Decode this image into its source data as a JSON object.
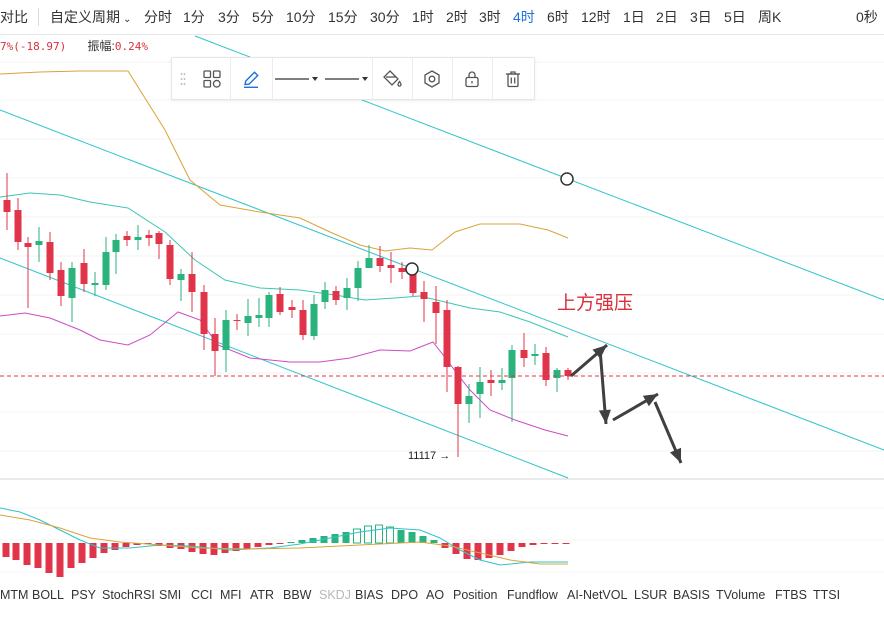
{
  "topbar": {
    "compare": "对比",
    "custom_period": "自定义周期",
    "periods": [
      "分时",
      "1分",
      "3分",
      "5分",
      "10分",
      "15分",
      "30分",
      "1时",
      "2时",
      "3时",
      "4时",
      "6时",
      "12时",
      "1日",
      "2日",
      "3日",
      "5日",
      "周K"
    ],
    "active_period": "4时",
    "timer": "0秒"
  },
  "info": {
    "change": "7%(-18.97)",
    "amplitude_label": "振幅:",
    "amplitude_value": "0.24%"
  },
  "drawing_toolbar": {
    "tools": [
      "layout-icon",
      "pencil-icon",
      "line-style-dropdown",
      "line-width-dropdown",
      "fill-color-icon",
      "settings-hexagon-icon",
      "lock-icon",
      "trash-icon"
    ]
  },
  "colors": {
    "up": "#2ab37d",
    "down": "#e0344a",
    "ma_upper": "#d9a43a",
    "ma_middle": "#3cc7b2",
    "ma_lower": "#cc4cc4",
    "channel": "#2ec4c9",
    "annotation": "#d9303c",
    "arrow": "#404040",
    "macd_dif": "#2ec4c9",
    "macd_dea": "#d9a43a"
  },
  "chart_data": {
    "type": "candlestick",
    "interval": "4时",
    "annotations": [
      {
        "text": "上方强压"
      },
      {
        "text": "11117 →"
      }
    ],
    "current_price_line": "dashed"
  },
  "indicators": {
    "items": [
      "MTM",
      "BOLL",
      "PSY",
      "StochRSI",
      "SMI",
      "CCI",
      "MFI",
      "ATR",
      "BBW",
      "SKDJ",
      "BIAS",
      "DPO",
      "AO",
      "Position",
      "Fundflow",
      "AI-NetVOL",
      "LSUR",
      "BASIS",
      "TVolume",
      "FTBS",
      "TTSI"
    ],
    "disabled": "SKDJ"
  }
}
